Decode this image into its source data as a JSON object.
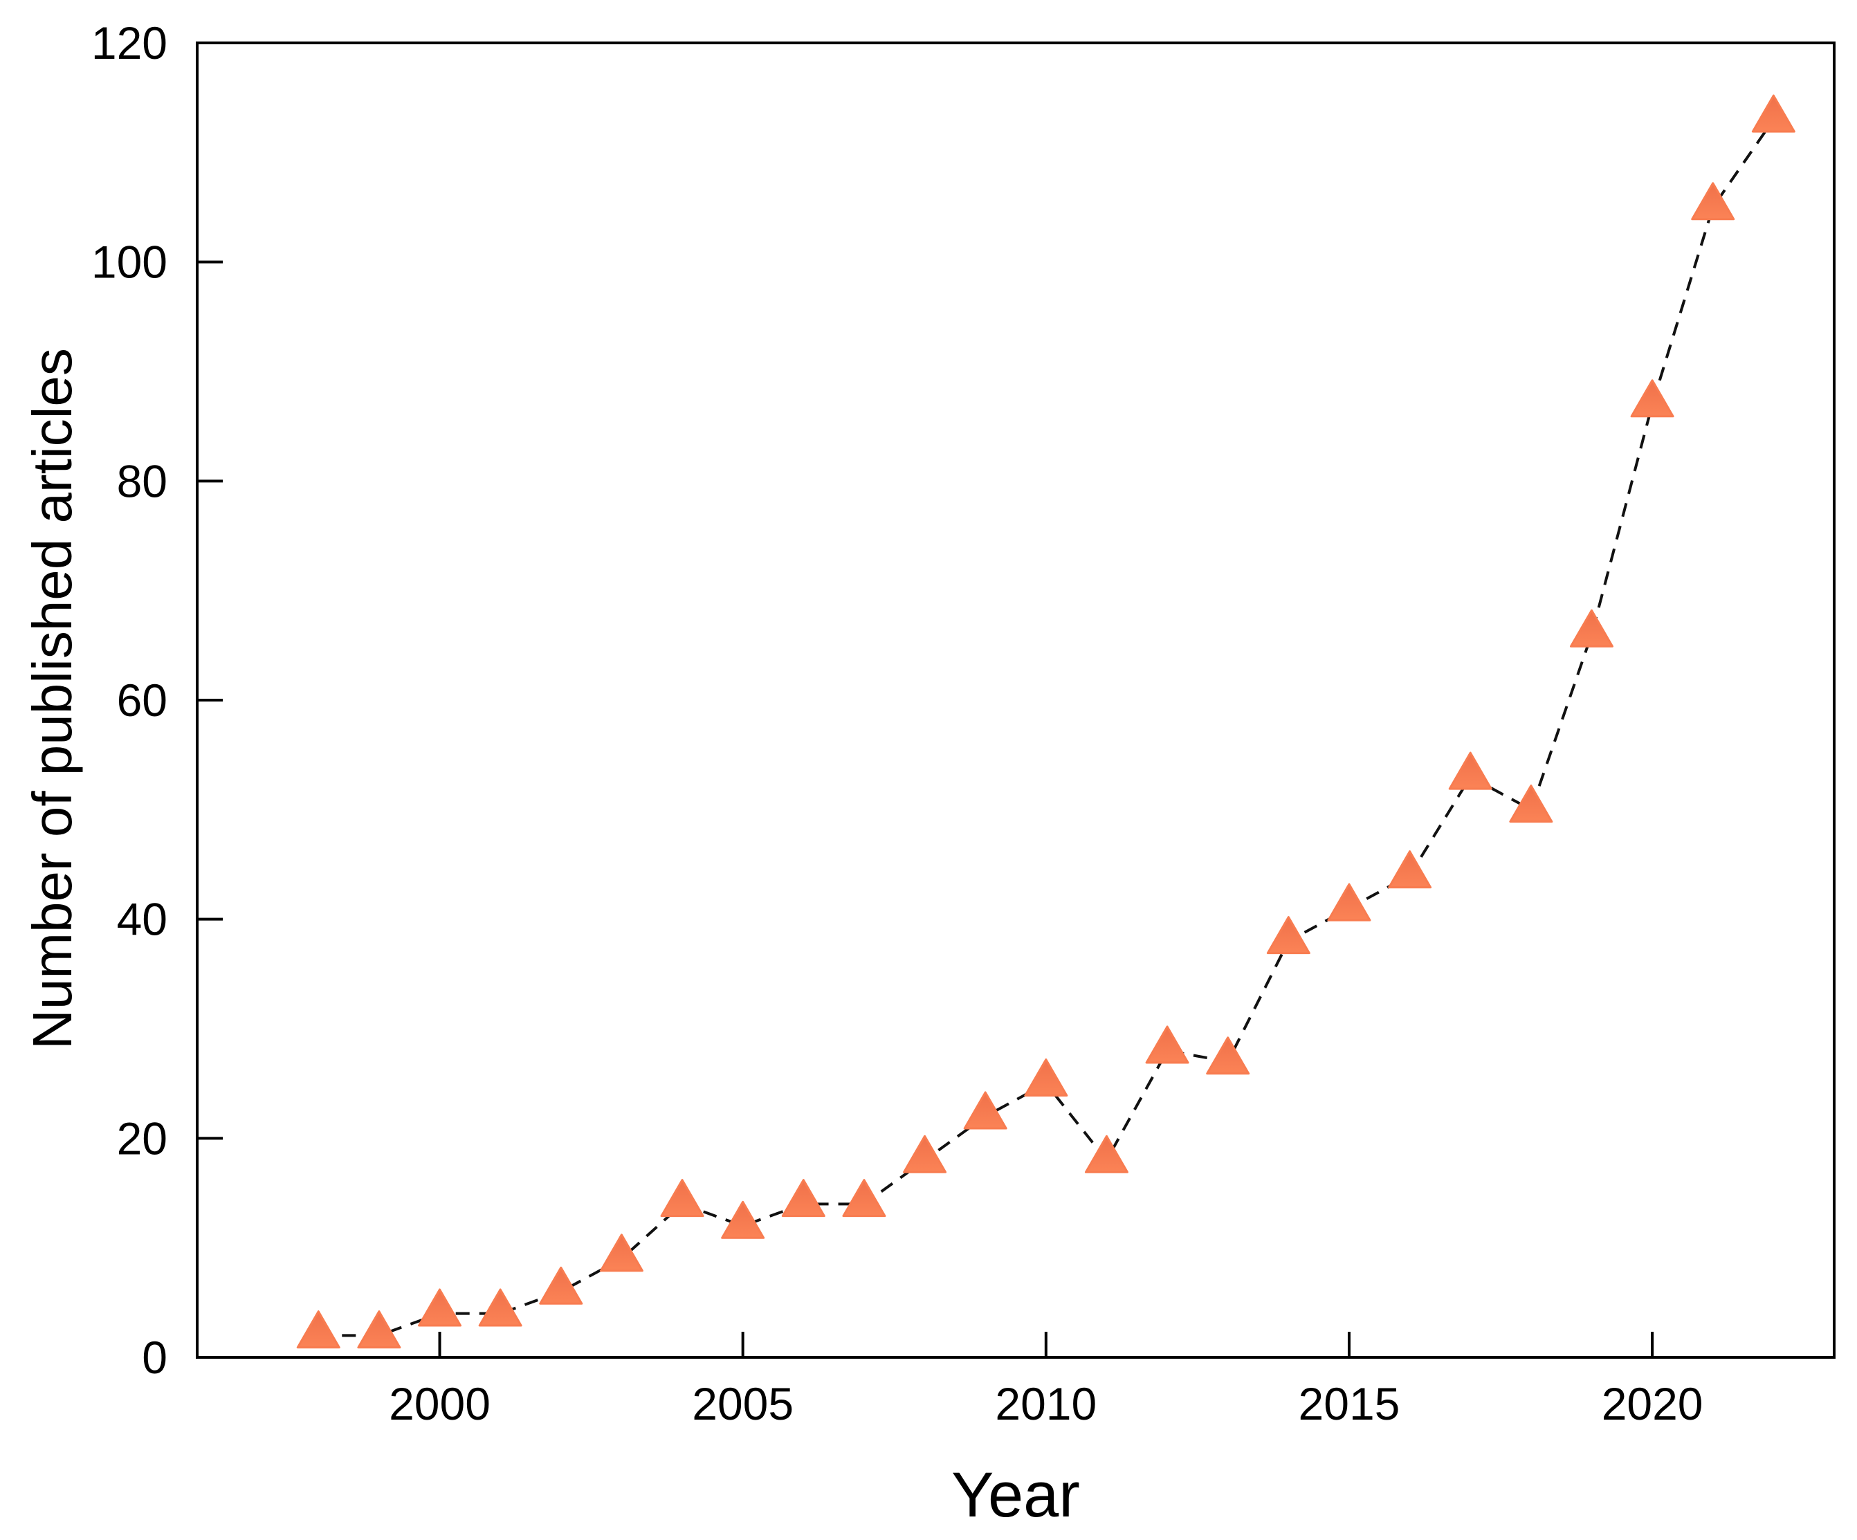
{
  "chart_data": {
    "type": "line",
    "title": "",
    "xlabel": "Year",
    "ylabel": "Number of published articles",
    "x": [
      1998,
      1999,
      2000,
      2001,
      2002,
      2003,
      2004,
      2005,
      2006,
      2007,
      2008,
      2009,
      2010,
      2011,
      2012,
      2013,
      2014,
      2015,
      2016,
      2017,
      2018,
      2019,
      2020,
      2021,
      2022
    ],
    "values": [
      2,
      2,
      4,
      4,
      6,
      9,
      14,
      12,
      14,
      14,
      18,
      22,
      25,
      18,
      28,
      27,
      38,
      41,
      44,
      53,
      50,
      66,
      87,
      105,
      113
    ],
    "xlim": [
      1996,
      2023
    ],
    "ylim": [
      0,
      120
    ],
    "x_ticks": [
      2000,
      2005,
      2010,
      2015,
      2020
    ],
    "y_ticks": [
      0,
      20,
      40,
      60,
      80,
      100,
      120
    ],
    "grid": false,
    "legend": false,
    "marker": "triangle-up",
    "marker_color": "#f87c50",
    "marker_color_top": "#f0714a",
    "marker_color_bottom": "#fb8356",
    "line_color": "#111111",
    "line_style": "dashed",
    "axis_color": "#000000"
  }
}
